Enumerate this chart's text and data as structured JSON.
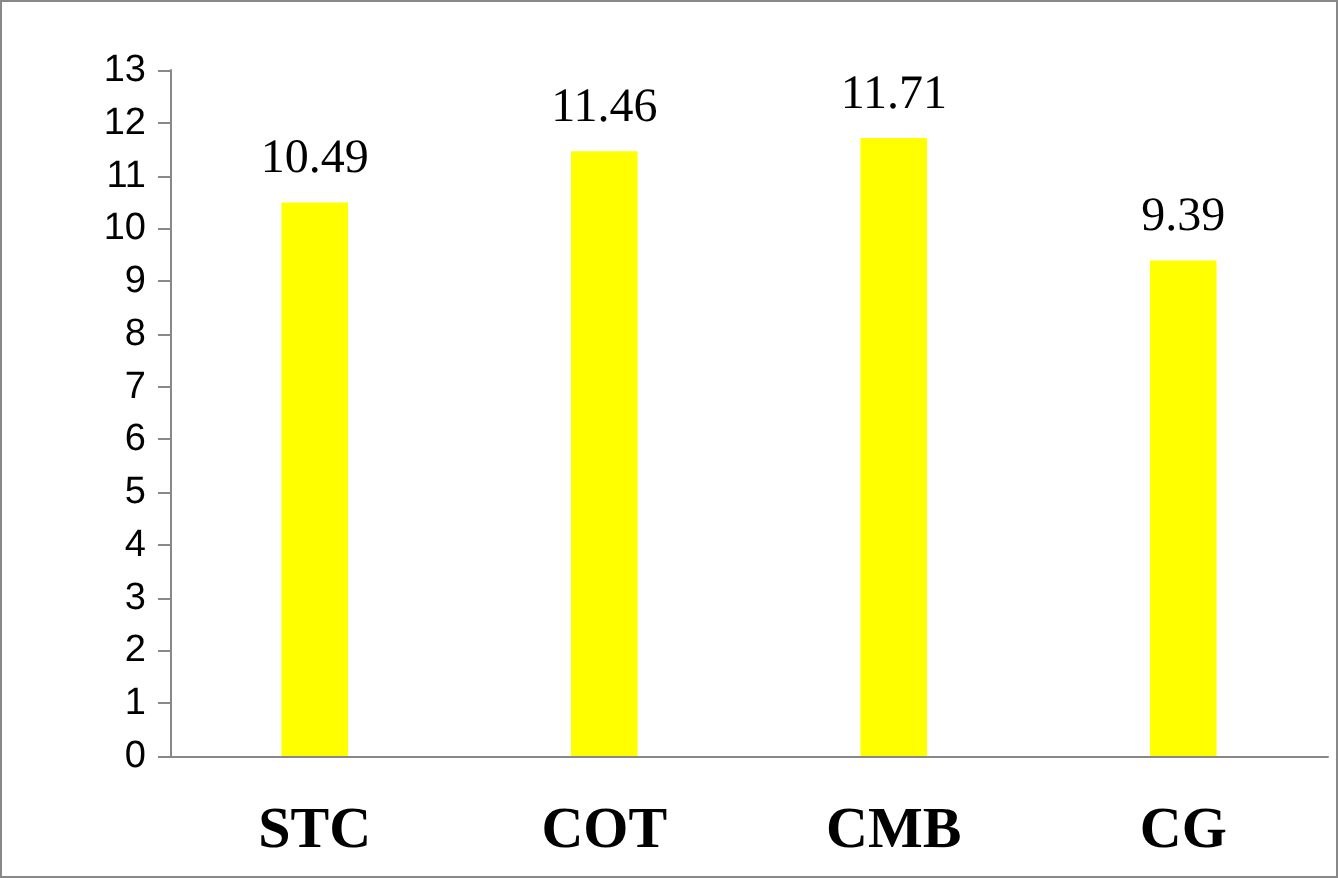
{
  "chart_data": {
    "type": "bar",
    "categories": [
      "STC",
      "COT",
      "CMB",
      "CG"
    ],
    "values": [
      10.49,
      11.46,
      11.71,
      9.39
    ],
    "color": "#ffff00",
    "ylim": [
      0,
      13
    ],
    "yticks": [
      0,
      1,
      2,
      3,
      4,
      5,
      6,
      7,
      8,
      9,
      10,
      11,
      12,
      13
    ],
    "grid": false,
    "data_labels": true
  }
}
